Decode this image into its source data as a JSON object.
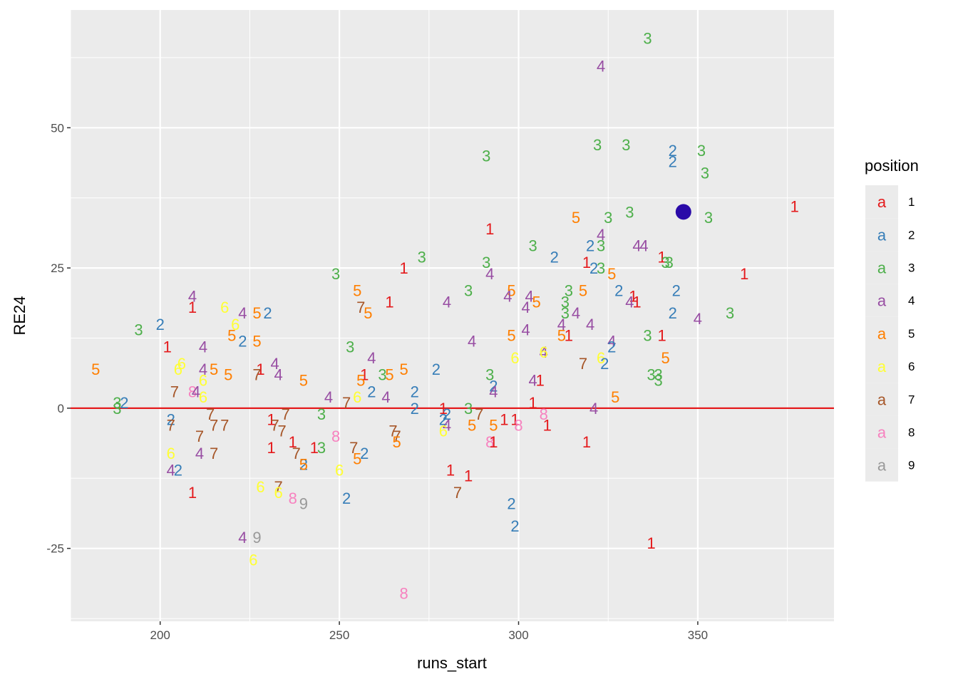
{
  "chart_data": {
    "type": "scatter",
    "title": "",
    "xlabel": "runs_start",
    "ylabel": "RE24",
    "xlim": [
      175,
      388
    ],
    "ylim": [
      -38,
      71
    ],
    "x_ticks": [
      200,
      250,
      300,
      350
    ],
    "y_ticks": [
      -25,
      0,
      25,
      50
    ],
    "grid": true,
    "reference_line": {
      "y": 0,
      "color": "#e41a1c"
    },
    "highlight_point": {
      "x": 346,
      "y": 35,
      "color": "#2a0aa8"
    },
    "legend": {
      "title": "position",
      "placement": "right",
      "key_glyph": "a",
      "entries": [
        {
          "label": "1",
          "color": "#e41a1c"
        },
        {
          "label": "2",
          "color": "#377eb8"
        },
        {
          "label": "3",
          "color": "#4daf4a"
        },
        {
          "label": "4",
          "color": "#984ea3"
        },
        {
          "label": "5",
          "color": "#ff7f00"
        },
        {
          "label": "6",
          "color": "#ffff33"
        },
        {
          "label": "7",
          "color": "#a65628"
        },
        {
          "label": "8",
          "color": "#f781bf"
        },
        {
          "label": "9",
          "color": "#999999"
        }
      ]
    },
    "points": [
      {
        "x": 336,
        "y": 66,
        "label": "3"
      },
      {
        "x": 323,
        "y": 61,
        "label": "4"
      },
      {
        "x": 322,
        "y": 47,
        "label": "3"
      },
      {
        "x": 330,
        "y": 47,
        "label": "3"
      },
      {
        "x": 291,
        "y": 45,
        "label": "3"
      },
      {
        "x": 343,
        "y": 46,
        "label": "2"
      },
      {
        "x": 343,
        "y": 44,
        "label": "2"
      },
      {
        "x": 351,
        "y": 46,
        "label": "3"
      },
      {
        "x": 352,
        "y": 42,
        "label": "3"
      },
      {
        "x": 377,
        "y": 36,
        "label": "1"
      },
      {
        "x": 331,
        "y": 35,
        "label": "3"
      },
      {
        "x": 353,
        "y": 34,
        "label": "3"
      },
      {
        "x": 316,
        "y": 34,
        "label": "5"
      },
      {
        "x": 325,
        "y": 34,
        "label": "3"
      },
      {
        "x": 292,
        "y": 32,
        "label": "1"
      },
      {
        "x": 323,
        "y": 31,
        "label": "4"
      },
      {
        "x": 333,
        "y": 29,
        "label": "4"
      },
      {
        "x": 335,
        "y": 29,
        "label": "4"
      },
      {
        "x": 320,
        "y": 29,
        "label": "2"
      },
      {
        "x": 304,
        "y": 29,
        "label": "3"
      },
      {
        "x": 310,
        "y": 27,
        "label": "2"
      },
      {
        "x": 323,
        "y": 29,
        "label": "3"
      },
      {
        "x": 273,
        "y": 27,
        "label": "3"
      },
      {
        "x": 291,
        "y": 26,
        "label": "3"
      },
      {
        "x": 319,
        "y": 26,
        "label": "1"
      },
      {
        "x": 321,
        "y": 25,
        "label": "2"
      },
      {
        "x": 340,
        "y": 27,
        "label": "1"
      },
      {
        "x": 341,
        "y": 26,
        "label": "3"
      },
      {
        "x": 342,
        "y": 26,
        "label": "3"
      },
      {
        "x": 268,
        "y": 25,
        "label": "1"
      },
      {
        "x": 249,
        "y": 24,
        "label": "3"
      },
      {
        "x": 292,
        "y": 24,
        "label": "4"
      },
      {
        "x": 326,
        "y": 24,
        "label": "5"
      },
      {
        "x": 323,
        "y": 25,
        "label": "3"
      },
      {
        "x": 363,
        "y": 24,
        "label": "1"
      },
      {
        "x": 328,
        "y": 21,
        "label": "2"
      },
      {
        "x": 344,
        "y": 21,
        "label": "2"
      },
      {
        "x": 255,
        "y": 21,
        "label": "5"
      },
      {
        "x": 286,
        "y": 21,
        "label": "3"
      },
      {
        "x": 298,
        "y": 21,
        "label": "5"
      },
      {
        "x": 314,
        "y": 21,
        "label": "3"
      },
      {
        "x": 318,
        "y": 21,
        "label": "5"
      },
      {
        "x": 332,
        "y": 20,
        "label": "1"
      },
      {
        "x": 303,
        "y": 20,
        "label": "4"
      },
      {
        "x": 297,
        "y": 20,
        "label": "4"
      },
      {
        "x": 264,
        "y": 19,
        "label": "1"
      },
      {
        "x": 280,
        "y": 19,
        "label": "4"
      },
      {
        "x": 305,
        "y": 19,
        "label": "5"
      },
      {
        "x": 333,
        "y": 19,
        "label": "1"
      },
      {
        "x": 331,
        "y": 19,
        "label": "4"
      },
      {
        "x": 209,
        "y": 20,
        "label": "4"
      },
      {
        "x": 302,
        "y": 18,
        "label": "4"
      },
      {
        "x": 313,
        "y": 19,
        "label": "3"
      },
      {
        "x": 209,
        "y": 18,
        "label": "1"
      },
      {
        "x": 218,
        "y": 18,
        "label": "6"
      },
      {
        "x": 256,
        "y": 18,
        "label": "7"
      },
      {
        "x": 223,
        "y": 17,
        "label": "4"
      },
      {
        "x": 227,
        "y": 17,
        "label": "5"
      },
      {
        "x": 230,
        "y": 17,
        "label": "2"
      },
      {
        "x": 258,
        "y": 17,
        "label": "5"
      },
      {
        "x": 343,
        "y": 17,
        "label": "2"
      },
      {
        "x": 316,
        "y": 17,
        "label": "4"
      },
      {
        "x": 313,
        "y": 17,
        "label": "3"
      },
      {
        "x": 359,
        "y": 17,
        "label": "3"
      },
      {
        "x": 350,
        "y": 16,
        "label": "4"
      },
      {
        "x": 200,
        "y": 15,
        "label": "2"
      },
      {
        "x": 221,
        "y": 15,
        "label": "6"
      },
      {
        "x": 320,
        "y": 15,
        "label": "4"
      },
      {
        "x": 312,
        "y": 15,
        "label": "4"
      },
      {
        "x": 194,
        "y": 14,
        "label": "3"
      },
      {
        "x": 302,
        "y": 14,
        "label": "4"
      },
      {
        "x": 298,
        "y": 13,
        "label": "5"
      },
      {
        "x": 220,
        "y": 13,
        "label": "5"
      },
      {
        "x": 336,
        "y": 13,
        "label": "3"
      },
      {
        "x": 312,
        "y": 13,
        "label": "5"
      },
      {
        "x": 314,
        "y": 13,
        "label": "1"
      },
      {
        "x": 340,
        "y": 13,
        "label": "1"
      },
      {
        "x": 223,
        "y": 12,
        "label": "2"
      },
      {
        "x": 227,
        "y": 12,
        "label": "5"
      },
      {
        "x": 326,
        "y": 12,
        "label": "4"
      },
      {
        "x": 287,
        "y": 12,
        "label": "4"
      },
      {
        "x": 253,
        "y": 11,
        "label": "3"
      },
      {
        "x": 202,
        "y": 11,
        "label": "1"
      },
      {
        "x": 212,
        "y": 11,
        "label": "4"
      },
      {
        "x": 326,
        "y": 11,
        "label": "2"
      },
      {
        "x": 307,
        "y": 10,
        "label": "4"
      },
      {
        "x": 307,
        "y": 10,
        "label": "6"
      },
      {
        "x": 259,
        "y": 9,
        "label": "4"
      },
      {
        "x": 323,
        "y": 9,
        "label": "6"
      },
      {
        "x": 341,
        "y": 9,
        "label": "5"
      },
      {
        "x": 299,
        "y": 9,
        "label": "6"
      },
      {
        "x": 206,
        "y": 8,
        "label": "6"
      },
      {
        "x": 232,
        "y": 8,
        "label": "4"
      },
      {
        "x": 324,
        "y": 8,
        "label": "2"
      },
      {
        "x": 318,
        "y": 8,
        "label": "7"
      },
      {
        "x": 182,
        "y": 7,
        "label": "5"
      },
      {
        "x": 205,
        "y": 7,
        "label": "6"
      },
      {
        "x": 212,
        "y": 7,
        "label": "4"
      },
      {
        "x": 215,
        "y": 7,
        "label": "5"
      },
      {
        "x": 219,
        "y": 6,
        "label": "5"
      },
      {
        "x": 228,
        "y": 7,
        "label": "1"
      },
      {
        "x": 227,
        "y": 6,
        "label": "7"
      },
      {
        "x": 233,
        "y": 6,
        "label": "4"
      },
      {
        "x": 257,
        "y": 6,
        "label": "1"
      },
      {
        "x": 262,
        "y": 6,
        "label": "3"
      },
      {
        "x": 264,
        "y": 6,
        "label": "5"
      },
      {
        "x": 268,
        "y": 7,
        "label": "5"
      },
      {
        "x": 277,
        "y": 7,
        "label": "2"
      },
      {
        "x": 292,
        "y": 6,
        "label": "3"
      },
      {
        "x": 337,
        "y": 6,
        "label": "3"
      },
      {
        "x": 339,
        "y": 6,
        "label": "3"
      },
      {
        "x": 212,
        "y": 5,
        "label": "6"
      },
      {
        "x": 240,
        "y": 5,
        "label": "5"
      },
      {
        "x": 256,
        "y": 5,
        "label": "5"
      },
      {
        "x": 304,
        "y": 5,
        "label": "4"
      },
      {
        "x": 306,
        "y": 5,
        "label": "1"
      },
      {
        "x": 339,
        "y": 5,
        "label": "3"
      },
      {
        "x": 293,
        "y": 4,
        "label": "2"
      },
      {
        "x": 204,
        "y": 3,
        "label": "7"
      },
      {
        "x": 209,
        "y": 3,
        "label": "8"
      },
      {
        "x": 210,
        "y": 3,
        "label": "4"
      },
      {
        "x": 259,
        "y": 3,
        "label": "2"
      },
      {
        "x": 263,
        "y": 2,
        "label": "4"
      },
      {
        "x": 293,
        "y": 3,
        "label": "4"
      },
      {
        "x": 190,
        "y": 1,
        "label": "2"
      },
      {
        "x": 188,
        "y": 1,
        "label": "3"
      },
      {
        "x": 188,
        "y": 0,
        "label": "3"
      },
      {
        "x": 212,
        "y": 2,
        "label": "6"
      },
      {
        "x": 247,
        "y": 2,
        "label": "4"
      },
      {
        "x": 252,
        "y": 1,
        "label": "7"
      },
      {
        "x": 255,
        "y": 2,
        "label": "6"
      },
      {
        "x": 271,
        "y": 3,
        "label": "2"
      },
      {
        "x": 271,
        "y": 0,
        "label": "2"
      },
      {
        "x": 304,
        "y": 1,
        "label": "1"
      },
      {
        "x": 327,
        "y": 2,
        "label": "5"
      },
      {
        "x": 245,
        "y": -1,
        "label": "3"
      },
      {
        "x": 279,
        "y": 0,
        "label": "1"
      },
      {
        "x": 286,
        "y": 0,
        "label": "3"
      },
      {
        "x": 321,
        "y": 0,
        "label": "4"
      },
      {
        "x": 214,
        "y": -1,
        "label": "7"
      },
      {
        "x": 235,
        "y": -1,
        "label": "7"
      },
      {
        "x": 280,
        "y": -1,
        "label": "2"
      },
      {
        "x": 289,
        "y": -1,
        "label": "7"
      },
      {
        "x": 307,
        "y": -1,
        "label": "8"
      },
      {
        "x": 203,
        "y": -2,
        "label": "2"
      },
      {
        "x": 231,
        "y": -2,
        "label": "1"
      },
      {
        "x": 279,
        "y": -2,
        "label": "2"
      },
      {
        "x": 296,
        "y": -2,
        "label": "1"
      },
      {
        "x": 299,
        "y": -2,
        "label": "1"
      },
      {
        "x": 203,
        "y": -3,
        "label": "7"
      },
      {
        "x": 215,
        "y": -3,
        "label": "7"
      },
      {
        "x": 218,
        "y": -3,
        "label": "7"
      },
      {
        "x": 232,
        "y": -3,
        "label": "7"
      },
      {
        "x": 280,
        "y": -3,
        "label": "4"
      },
      {
        "x": 287,
        "y": -3,
        "label": "5"
      },
      {
        "x": 300,
        "y": -3,
        "label": "8"
      },
      {
        "x": 308,
        "y": -3,
        "label": "1"
      },
      {
        "x": 234,
        "y": -4,
        "label": "7"
      },
      {
        "x": 265,
        "y": -4,
        "label": "7"
      },
      {
        "x": 279,
        "y": -4,
        "label": "6"
      },
      {
        "x": 293,
        "y": -3,
        "label": "5"
      },
      {
        "x": 249,
        "y": -5,
        "label": "8"
      },
      {
        "x": 211,
        "y": -5,
        "label": "7"
      },
      {
        "x": 266,
        "y": -5,
        "label": "7"
      },
      {
        "x": 292,
        "y": -6,
        "label": "8"
      },
      {
        "x": 293,
        "y": -6,
        "label": "1"
      },
      {
        "x": 319,
        "y": -6,
        "label": "1"
      },
      {
        "x": 266,
        "y": -6,
        "label": "5"
      },
      {
        "x": 237,
        "y": -6,
        "label": "1"
      },
      {
        "x": 231,
        "y": -7,
        "label": "1"
      },
      {
        "x": 203,
        "y": -8,
        "label": "6"
      },
      {
        "x": 211,
        "y": -8,
        "label": "4"
      },
      {
        "x": 215,
        "y": -8,
        "label": "7"
      },
      {
        "x": 238,
        "y": -8,
        "label": "7"
      },
      {
        "x": 245,
        "y": -7,
        "label": "3"
      },
      {
        "x": 243,
        "y": -7,
        "label": "1"
      },
      {
        "x": 254,
        "y": -7,
        "label": "7"
      },
      {
        "x": 257,
        "y": -8,
        "label": "2"
      },
      {
        "x": 255,
        "y": -9,
        "label": "5"
      },
      {
        "x": 240,
        "y": -10,
        "label": "2"
      },
      {
        "x": 240,
        "y": -10,
        "label": "5"
      },
      {
        "x": 250,
        "y": -11,
        "label": "6"
      },
      {
        "x": 203,
        "y": -11,
        "label": "4"
      },
      {
        "x": 205,
        "y": -11,
        "label": "2"
      },
      {
        "x": 281,
        "y": -11,
        "label": "1"
      },
      {
        "x": 286,
        "y": -12,
        "label": "1"
      },
      {
        "x": 228,
        "y": -14,
        "label": "6"
      },
      {
        "x": 233,
        "y": -14,
        "label": "7"
      },
      {
        "x": 233,
        "y": -15,
        "label": "6"
      },
      {
        "x": 283,
        "y": -15,
        "label": "7"
      },
      {
        "x": 209,
        "y": -15,
        "label": "1"
      },
      {
        "x": 237,
        "y": -16,
        "label": "8"
      },
      {
        "x": 240,
        "y": -17,
        "label": "9"
      },
      {
        "x": 252,
        "y": -16,
        "label": "2"
      },
      {
        "x": 298,
        "y": -17,
        "label": "2"
      },
      {
        "x": 299,
        "y": -21,
        "label": "2"
      },
      {
        "x": 223,
        "y": -23,
        "label": "4"
      },
      {
        "x": 227,
        "y": -23,
        "label": "9"
      },
      {
        "x": 337,
        "y": -24,
        "label": "1"
      },
      {
        "x": 226,
        "y": -27,
        "label": "6"
      },
      {
        "x": 268,
        "y": -33,
        "label": "8"
      }
    ]
  }
}
